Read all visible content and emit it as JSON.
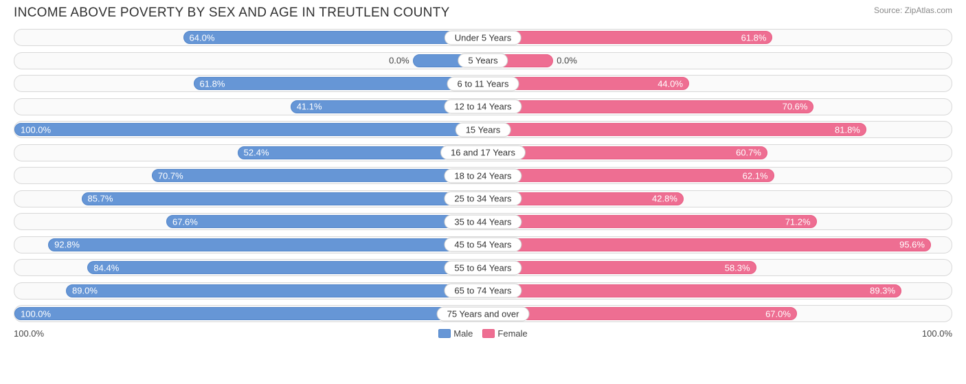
{
  "title": "INCOME ABOVE POVERTY BY SEX AND AGE IN TREUTLEN COUNTY",
  "source": "Source: ZipAtlas.com",
  "colors": {
    "male": "#6696d6",
    "male_border": "#4f83c9",
    "female": "#ee6e92",
    "female_border": "#e85a82",
    "row_bg": "#fafafa",
    "row_border": "#d8d8d8",
    "text": "#333333"
  },
  "axis": {
    "left": "100.0%",
    "right": "100.0%"
  },
  "legend": {
    "male": "Male",
    "female": "Female"
  },
  "min_bar_pct": 15,
  "inside_threshold": 25,
  "rows": [
    {
      "label": "Under 5 Years",
      "male": 64.0,
      "female": 61.8
    },
    {
      "label": "5 Years",
      "male": 0.0,
      "female": 0.0
    },
    {
      "label": "6 to 11 Years",
      "male": 61.8,
      "female": 44.0
    },
    {
      "label": "12 to 14 Years",
      "male": 41.1,
      "female": 70.6
    },
    {
      "label": "15 Years",
      "male": 100.0,
      "female": 81.8
    },
    {
      "label": "16 and 17 Years",
      "male": 52.4,
      "female": 60.7
    },
    {
      "label": "18 to 24 Years",
      "male": 70.7,
      "female": 62.1
    },
    {
      "label": "25 to 34 Years",
      "male": 85.7,
      "female": 42.8
    },
    {
      "label": "35 to 44 Years",
      "male": 67.6,
      "female": 71.2
    },
    {
      "label": "45 to 54 Years",
      "male": 92.8,
      "female": 95.6
    },
    {
      "label": "55 to 64 Years",
      "male": 84.4,
      "female": 58.3
    },
    {
      "label": "65 to 74 Years",
      "male": 89.0,
      "female": 89.3
    },
    {
      "label": "75 Years and over",
      "male": 100.0,
      "female": 67.0
    }
  ]
}
